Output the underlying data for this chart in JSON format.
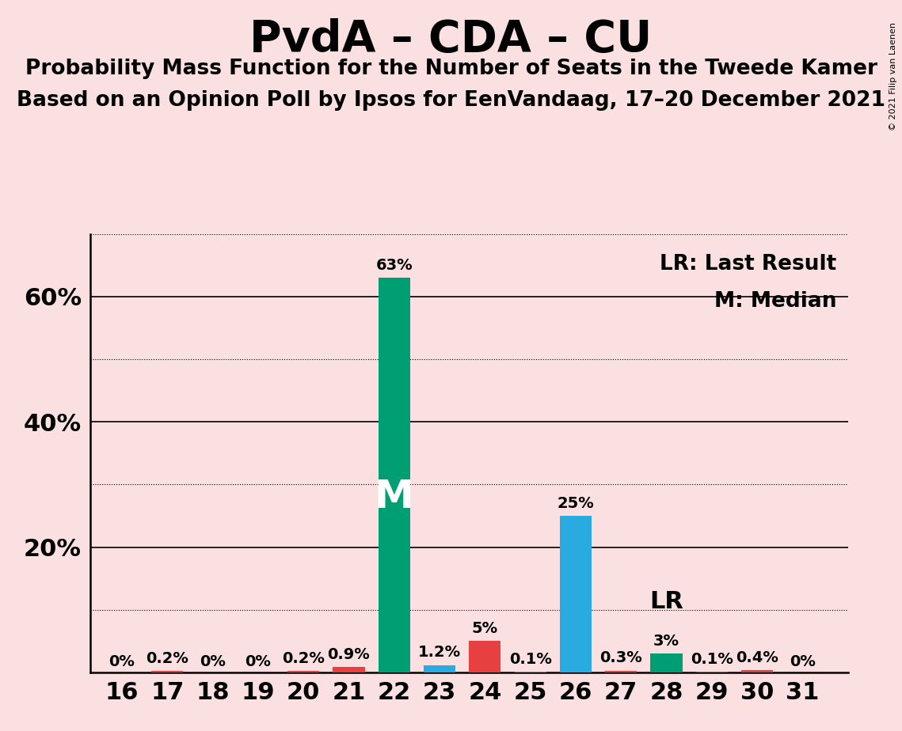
{
  "title": "PvdA – CDA – CU",
  "subtitle1": "Probability Mass Function for the Number of Seats in the Tweede Kamer",
  "subtitle2": "Based on an Opinion Poll by Ipsos for EenVandaag, 17–20 December 2021",
  "copyright": "© 2021 Filip van Laenen",
  "legend_lr": "LR: Last Result",
  "legend_m": "M: Median",
  "seats": [
    16,
    17,
    18,
    19,
    20,
    21,
    22,
    23,
    24,
    25,
    26,
    27,
    28,
    29,
    30,
    31
  ],
  "values": [
    0.0,
    0.2,
    0.0,
    0.0,
    0.2,
    0.9,
    63.0,
    1.2,
    5.0,
    0.1,
    25.0,
    0.3,
    3.0,
    0.1,
    0.4,
    0.0
  ],
  "labels": [
    "0%",
    "0.2%",
    "0%",
    "0%",
    "0.2%",
    "0.9%",
    "63%",
    "1.2%",
    "5%",
    "0.1%",
    "25%",
    "0.3%",
    "3%",
    "0.1%",
    "0.4%",
    "0%"
  ],
  "colors": [
    "#E84040",
    "#E84040",
    "#E84040",
    "#E84040",
    "#E84040",
    "#E84040",
    "#009E73",
    "#29ABE2",
    "#E84040",
    "#29ABE2",
    "#29ABE2",
    "#E84040",
    "#009E73",
    "#E84040",
    "#E84040",
    "#E84040"
  ],
  "median_seat": 22,
  "lr_seat": 28,
  "background_color": "#FAE0E0",
  "ylim": [
    0,
    70
  ],
  "major_gridlines": [
    20,
    40,
    60
  ],
  "minor_gridlines": [
    10,
    30,
    50,
    70
  ],
  "bar_width": 0.7,
  "title_fontsize": 40,
  "subtitle_fontsize": 19,
  "tick_fontsize": 22,
  "label_fontsize": 14,
  "legend_fontsize": 19,
  "m_fontsize": 36,
  "lr_fontsize": 22
}
